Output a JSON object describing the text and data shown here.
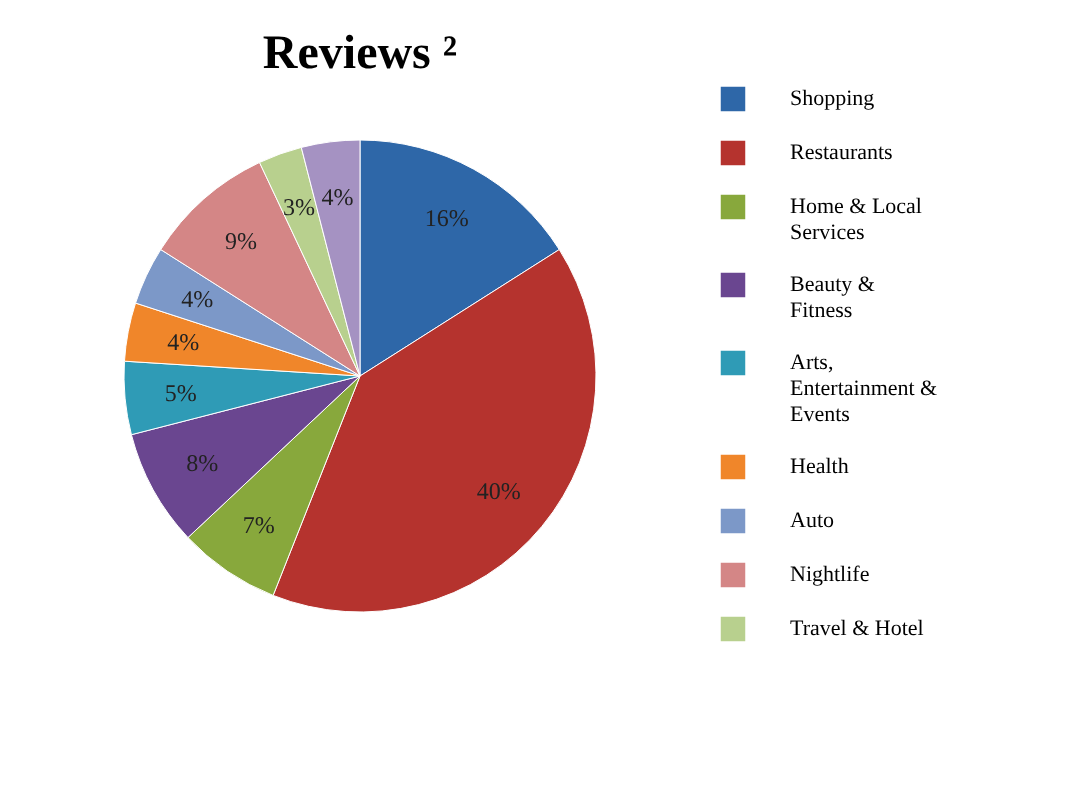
{
  "chart_data": {
    "type": "pie",
    "title": "Reviews ²",
    "categories": [
      "Shopping",
      "Restaurants",
      "Home & Local Services",
      "Beauty & Fitness",
      "Arts, Entertainment & Events",
      "Health",
      "Auto",
      "Nightlife",
      "Travel & Hotel",
      null
    ],
    "values": [
      16,
      40,
      7,
      8,
      5,
      4,
      4,
      9,
      3,
      4
    ],
    "value_labels": [
      "16%",
      "40%",
      "7%",
      "8%",
      "5%",
      "4%",
      "4%",
      "9%",
      "3%",
      "4%"
    ],
    "colors": [
      "#2e67a8",
      "#b5332e",
      "#88a83c",
      "#6a4690",
      "#2f9bb6",
      "#f0862a",
      "#7c98c8",
      "#d48686",
      "#b8d08e",
      "#a592c2"
    ],
    "legend": "right"
  }
}
